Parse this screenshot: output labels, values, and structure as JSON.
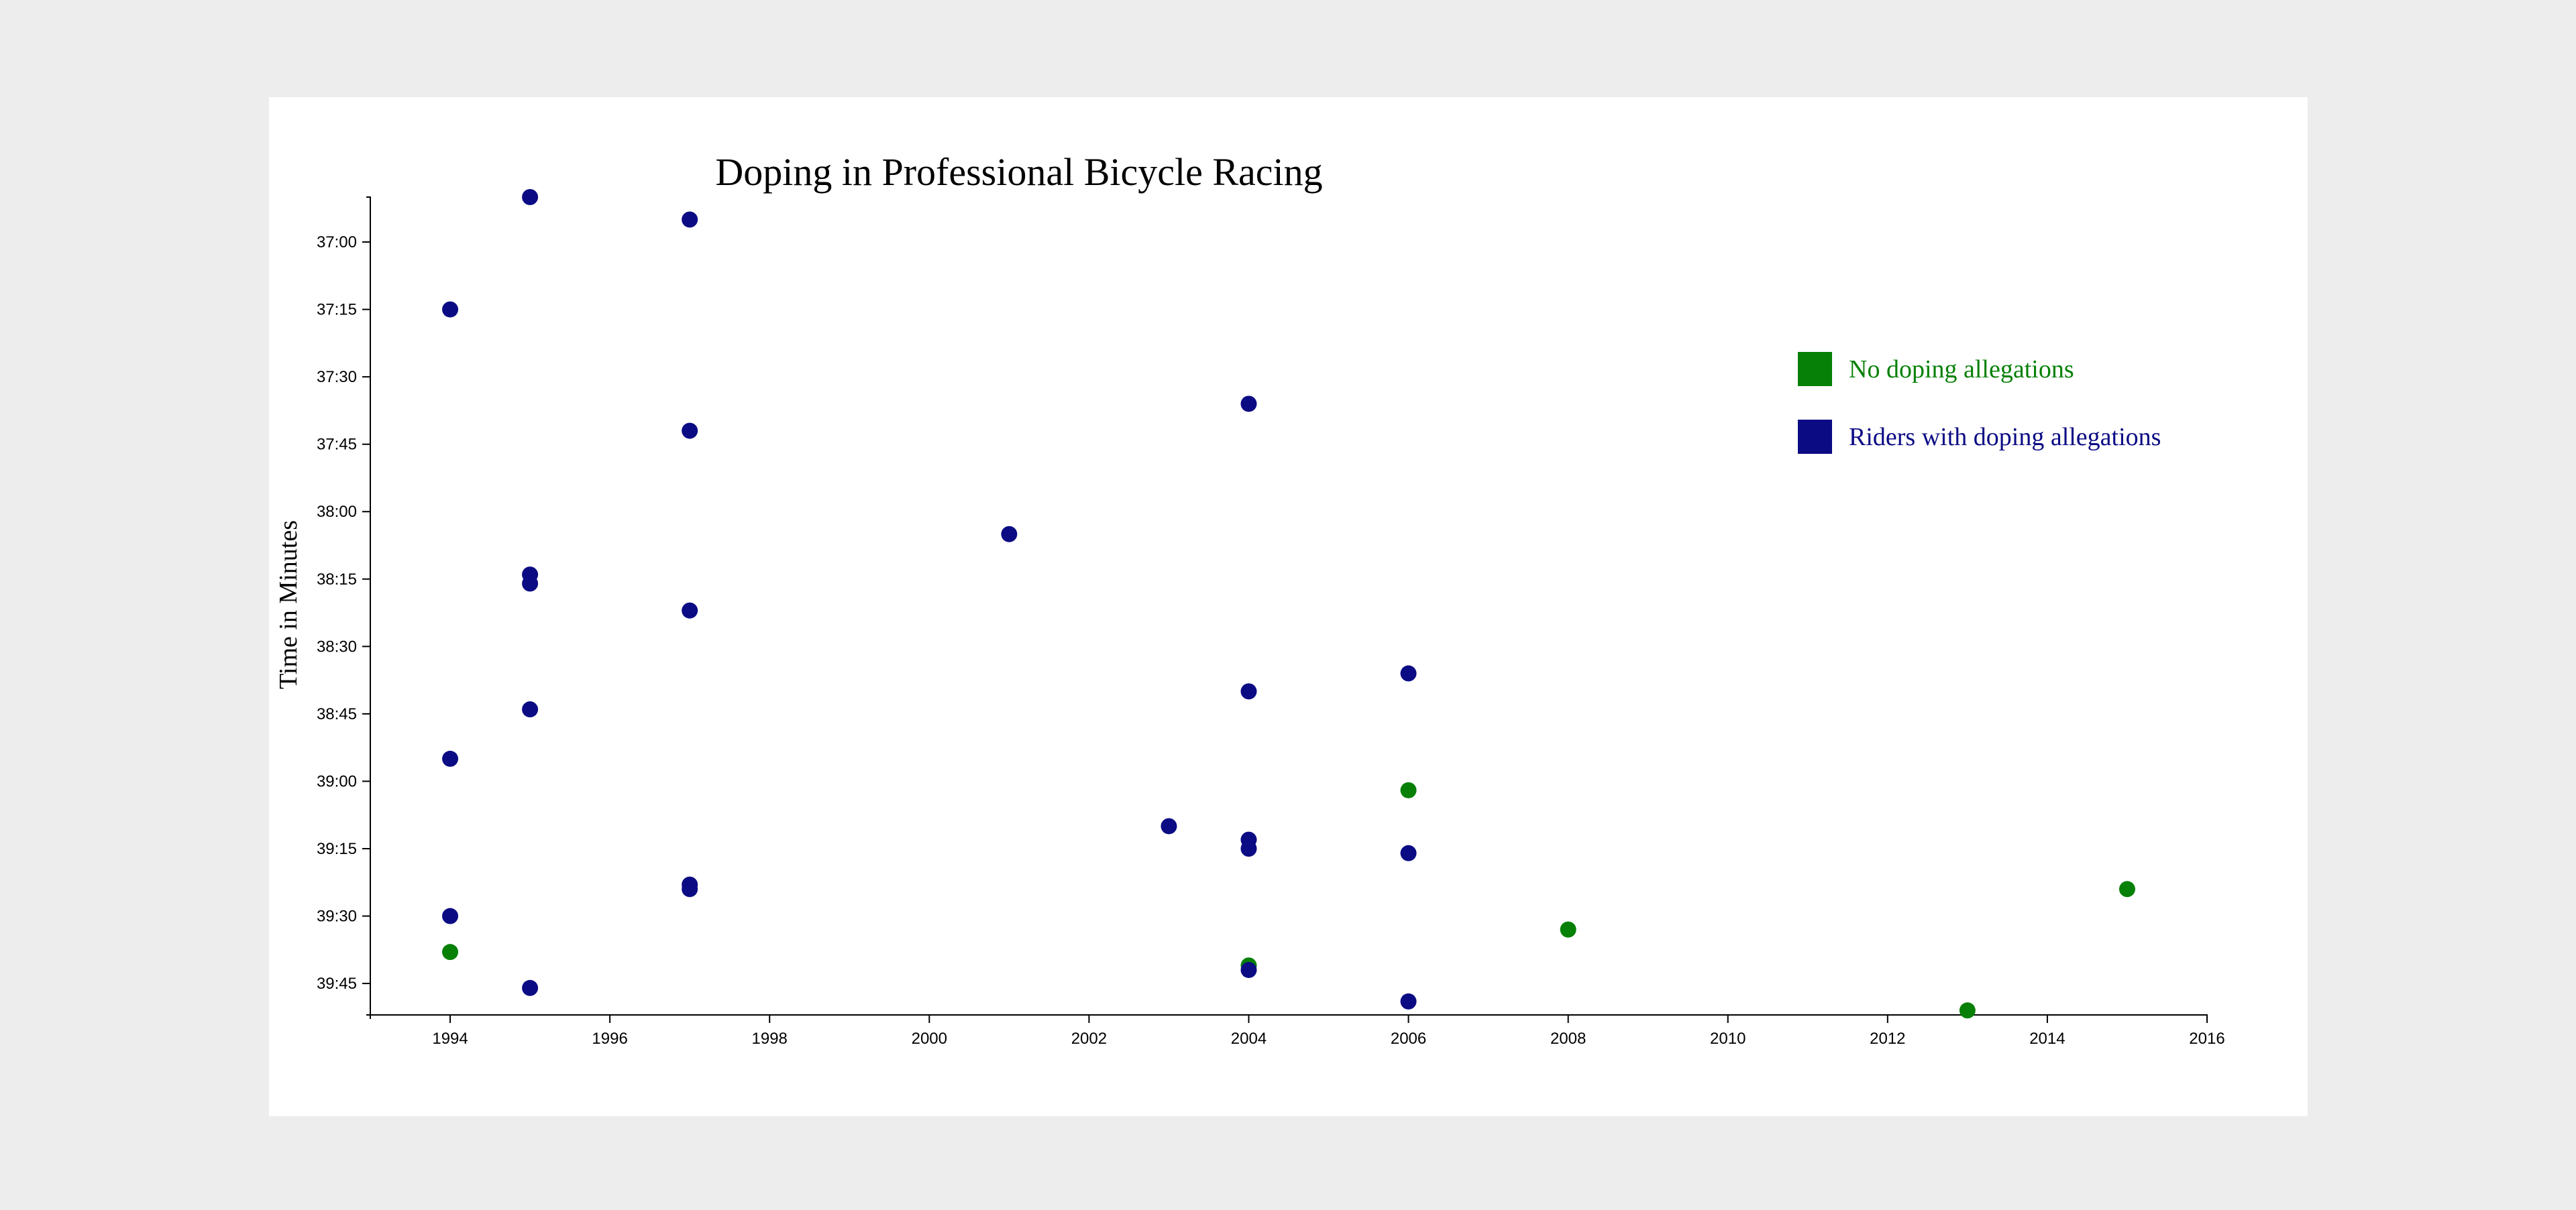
{
  "chart_data": {
    "type": "scatter",
    "title": "Doping in Professional Bicycle Racing",
    "xlabel": "",
    "ylabel": "Time in Minutes",
    "xlim": [
      1993,
      2016
    ],
    "ylim": [
      "36:50",
      "39:52"
    ],
    "y_inverted": true,
    "x_ticks": [
      "1994",
      "1996",
      "1998",
      "2000",
      "2002",
      "2004",
      "2006",
      "2008",
      "2010",
      "2012",
      "2014",
      "2016"
    ],
    "y_ticks": [
      "37:00",
      "37:15",
      "37:30",
      "37:45",
      "38:00",
      "38:15",
      "38:30",
      "38:45",
      "39:00",
      "39:15",
      "39:30",
      "39:45"
    ],
    "grid": false,
    "legend_position": "top-right",
    "series": [
      {
        "name": "No doping allegations",
        "color": "#068006",
        "points": [
          {
            "x": 1994,
            "y": "39:38"
          },
          {
            "x": 2004,
            "y": "39:41"
          },
          {
            "x": 2006,
            "y": "39:02"
          },
          {
            "x": 2008,
            "y": "39:33"
          },
          {
            "x": 2013,
            "y": "39:51"
          },
          {
            "x": 2015,
            "y": "39:24"
          }
        ]
      },
      {
        "name": "Riders with doping allegations",
        "color": "#0b0b84",
        "points": [
          {
            "x": 1995,
            "y": "36:50"
          },
          {
            "x": 1997,
            "y": "36:55"
          },
          {
            "x": 1994,
            "y": "37:15"
          },
          {
            "x": 2004,
            "y": "37:36"
          },
          {
            "x": 1997,
            "y": "37:42"
          },
          {
            "x": 2001,
            "y": "38:05"
          },
          {
            "x": 1995,
            "y": "38:14"
          },
          {
            "x": 1995,
            "y": "38:16"
          },
          {
            "x": 1997,
            "y": "38:22"
          },
          {
            "x": 2006,
            "y": "38:36"
          },
          {
            "x": 2004,
            "y": "38:40"
          },
          {
            "x": 1995,
            "y": "38:44"
          },
          {
            "x": 1994,
            "y": "38:55"
          },
          {
            "x": 2003,
            "y": "39:10"
          },
          {
            "x": 2004,
            "y": "39:13"
          },
          {
            "x": 2004,
            "y": "39:15"
          },
          {
            "x": 2006,
            "y": "39:16"
          },
          {
            "x": 1997,
            "y": "39:23"
          },
          {
            "x": 1997,
            "y": "39:24"
          },
          {
            "x": 1994,
            "y": "39:30"
          },
          {
            "x": 2004,
            "y": "39:42"
          },
          {
            "x": 1995,
            "y": "39:46"
          },
          {
            "x": 2006,
            "y": "39:49"
          }
        ]
      }
    ]
  }
}
